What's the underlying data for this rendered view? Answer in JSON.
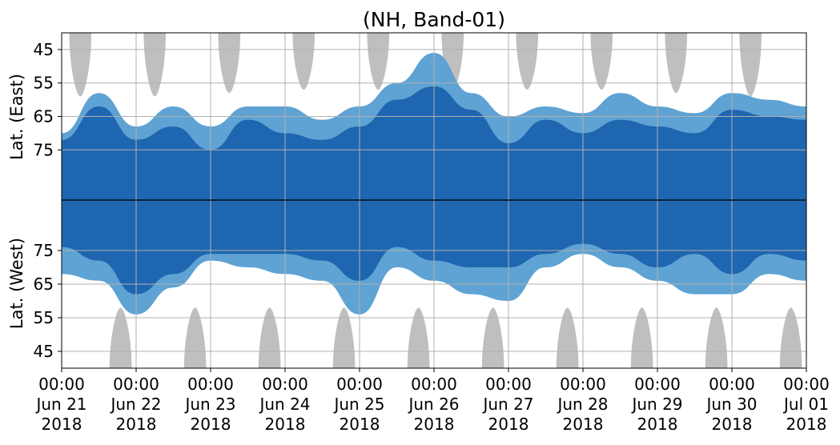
{
  "chart_data": {
    "type": "heatmap",
    "title": "(NH, Band-01)",
    "ylabel_top": "Lat. (East)",
    "ylabel_bottom": "Lat. (West)",
    "x_ticks": [
      {
        "time": "00:00",
        "date": "Jun 21",
        "year": "2018"
      },
      {
        "time": "00:00",
        "date": "Jun 22",
        "year": "2018"
      },
      {
        "time": "00:00",
        "date": "Jun 23",
        "year": "2018"
      },
      {
        "time": "00:00",
        "date": "Jun 24",
        "year": "2018"
      },
      {
        "time": "00:00",
        "date": "Jun 25",
        "year": "2018"
      },
      {
        "time": "00:00",
        "date": "Jun 26",
        "year": "2018"
      },
      {
        "time": "00:00",
        "date": "Jun 27",
        "year": "2018"
      },
      {
        "time": "00:00",
        "date": "Jun 28",
        "year": "2018"
      },
      {
        "time": "00:00",
        "date": "Jun 29",
        "year": "2018"
      },
      {
        "time": "00:00",
        "date": "Jun 30",
        "year": "2018"
      },
      {
        "time": "00:00",
        "date": "Jul 01",
        "year": "2018"
      }
    ],
    "xlim": [
      "2018-06-21",
      "2018-07-01"
    ],
    "east_ticks": [
      "45",
      "55",
      "65",
      "75"
    ],
    "west_ticks": [
      "75",
      "65",
      "55",
      "45"
    ],
    "ylim": [
      40,
      90
    ],
    "grid": true,
    "colors": {
      "strong": "#1f66b0",
      "weak": "#5ea3d3",
      "night": "#bfbfbf",
      "grid": "#b0b0b0",
      "divider": "#000000"
    },
    "east_night_lobes": [
      {
        "center": "2018-06-21 06:00",
        "reach_lat": 59
      },
      {
        "center": "2018-06-22 06:00",
        "reach_lat": 59
      },
      {
        "center": "2018-06-23 06:00",
        "reach_lat": 58
      },
      {
        "center": "2018-06-24 06:00",
        "reach_lat": 57
      },
      {
        "center": "2018-06-25 06:00",
        "reach_lat": 57
      },
      {
        "center": "2018-06-26 06:00",
        "reach_lat": 57
      },
      {
        "center": "2018-06-27 06:00",
        "reach_lat": 57
      },
      {
        "center": "2018-06-28 06:00",
        "reach_lat": 57
      },
      {
        "center": "2018-06-29 06:00",
        "reach_lat": 58
      },
      {
        "center": "2018-06-30 06:00",
        "reach_lat": 59
      }
    ],
    "west_night_lobes": [
      {
        "center": "2018-06-21 19:00",
        "reach_lat": 58
      },
      {
        "center": "2018-06-22 19:00",
        "reach_lat": 58
      },
      {
        "center": "2018-06-23 19:00",
        "reach_lat": 58
      },
      {
        "center": "2018-06-24 19:00",
        "reach_lat": 58
      },
      {
        "center": "2018-06-25 19:00",
        "reach_lat": 58
      },
      {
        "center": "2018-06-26 19:00",
        "reach_lat": 58
      },
      {
        "center": "2018-06-27 19:00",
        "reach_lat": 58
      },
      {
        "center": "2018-06-28 19:00",
        "reach_lat": 58
      },
      {
        "center": "2018-06-29 19:00",
        "reach_lat": 58
      },
      {
        "center": "2018-06-30 19:00",
        "reach_lat": 58
      }
    ],
    "east_activity_extent": {
      "days": [
        "2018-06-21",
        "2018-06-21 12:00",
        "2018-06-22",
        "2018-06-22 12:00",
        "2018-06-23",
        "2018-06-23 12:00",
        "2018-06-24",
        "2018-06-24 12:00",
        "2018-06-25",
        "2018-06-25 12:00",
        "2018-06-26",
        "2018-06-26 12:00",
        "2018-06-27",
        "2018-06-27 12:00",
        "2018-06-28",
        "2018-06-28 12:00",
        "2018-06-29",
        "2018-06-29 12:00",
        "2018-06-30",
        "2018-06-30 12:00",
        "2018-07-01"
      ],
      "strong_min_lat": [
        72,
        62,
        72,
        68,
        75,
        66,
        70,
        72,
        68,
        60,
        56,
        63,
        73,
        66,
        70,
        66,
        68,
        70,
        63,
        65,
        66
      ],
      "weak_min_lat": [
        70,
        58,
        68,
        62,
        68,
        62,
        62,
        66,
        62,
        55,
        46,
        58,
        65,
        62,
        64,
        58,
        62,
        64,
        58,
        60,
        62
      ]
    },
    "west_activity_extent": {
      "days": [
        "2018-06-21",
        "2018-06-21 12:00",
        "2018-06-22",
        "2018-06-22 12:00",
        "2018-06-23",
        "2018-06-23 12:00",
        "2018-06-24",
        "2018-06-24 12:00",
        "2018-06-25",
        "2018-06-25 12:00",
        "2018-06-26",
        "2018-06-26 12:00",
        "2018-06-27",
        "2018-06-27 12:00",
        "2018-06-28",
        "2018-06-28 12:00",
        "2018-06-29",
        "2018-06-29 12:00",
        "2018-06-30",
        "2018-06-30 12:00",
        "2018-07-01"
      ],
      "strong_min_lat": [
        76,
        72,
        62,
        68,
        74,
        74,
        74,
        72,
        66,
        76,
        72,
        70,
        70,
        74,
        77,
        74,
        70,
        74,
        68,
        74,
        72
      ],
      "weak_min_lat": [
        68,
        66,
        56,
        64,
        72,
        70,
        68,
        66,
        56,
        70,
        66,
        62,
        60,
        70,
        74,
        70,
        66,
        62,
        62,
        68,
        66
      ]
    }
  }
}
